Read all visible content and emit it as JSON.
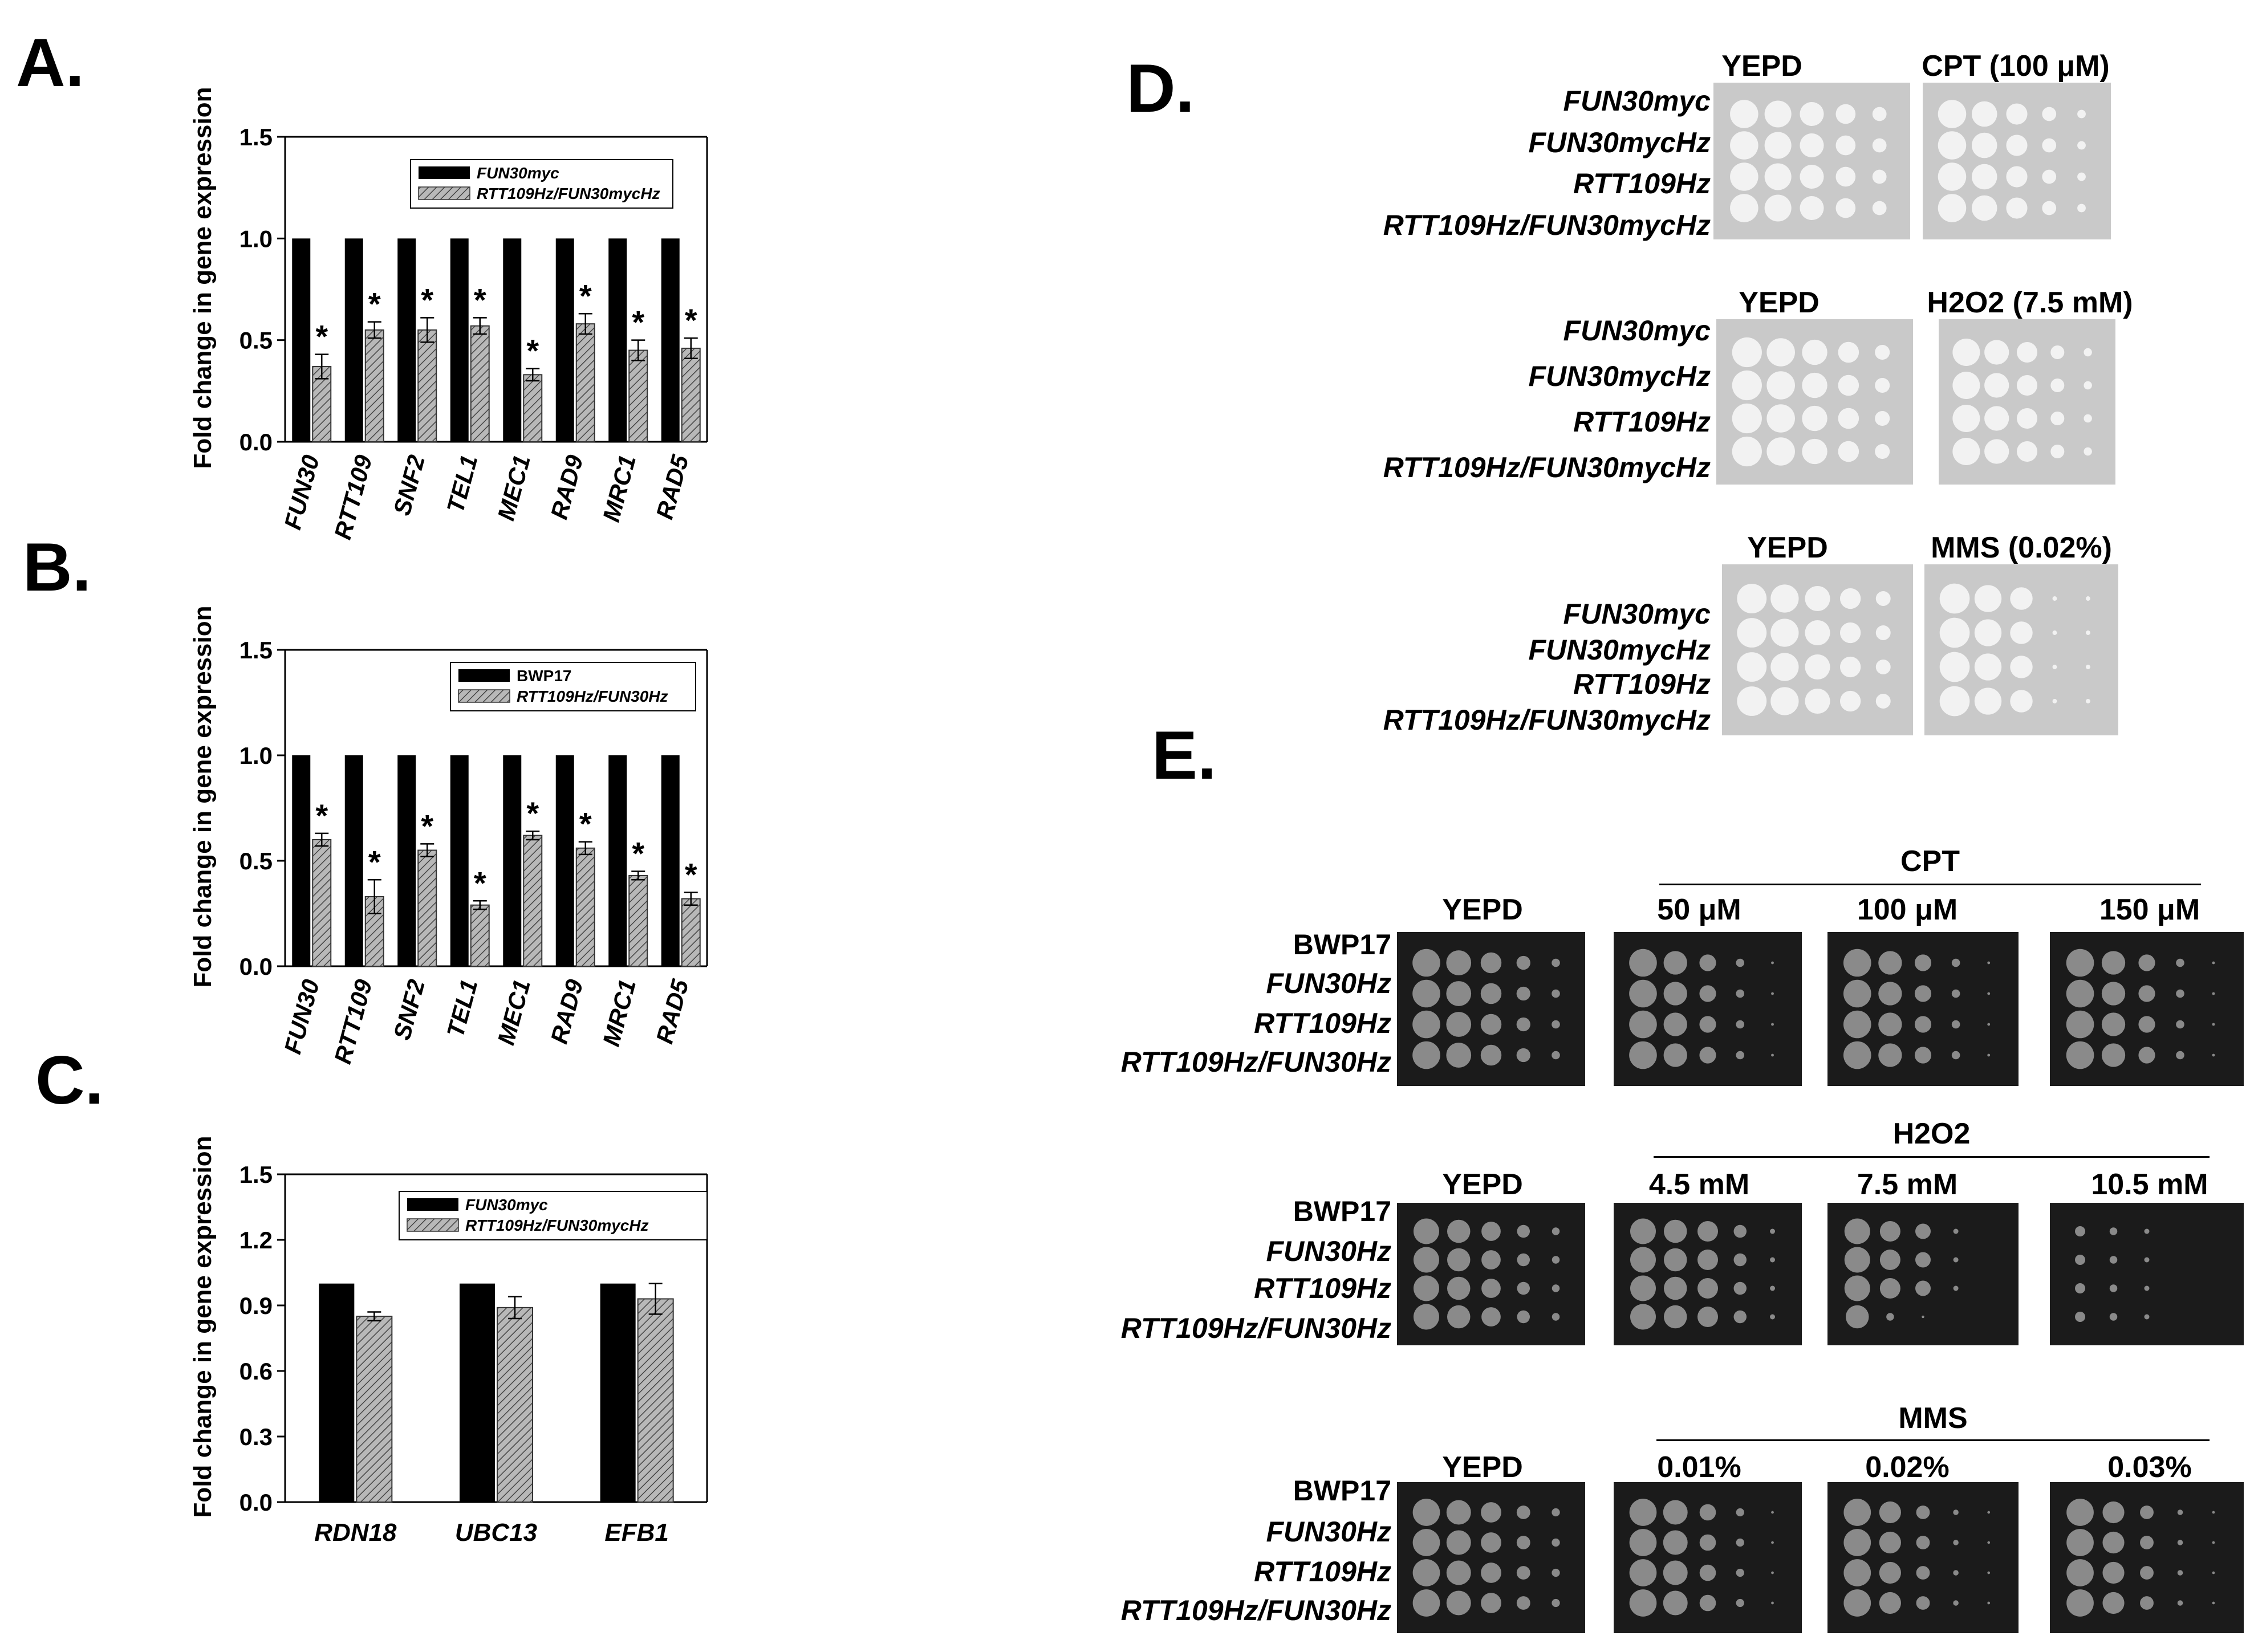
{
  "panels": {
    "A": {
      "letter": "A.",
      "chart_data": {
        "type": "bar",
        "ylabel": "Fold change in gene expression",
        "ylim": [
          0,
          1.5
        ],
        "yticks": [
          "0.0",
          "0.5",
          "1.0",
          "1.5"
        ],
        "categories": [
          "FUN30",
          "RTT109",
          "SNF2",
          "TEL1",
          "MEC1",
          "RAD9",
          "MRC1",
          "RAD5"
        ],
        "legend_placement": "top-right",
        "series": [
          {
            "name": "FUN30myc",
            "color": "#000000",
            "values": [
              1,
              1,
              1,
              1,
              1,
              1,
              1,
              1
            ]
          },
          {
            "name": "RTT109Hz/FUN30mycHz",
            "color": "#9a9a9a",
            "hatched": true,
            "values": [
              0.37,
              0.55,
              0.55,
              0.57,
              0.33,
              0.58,
              0.45,
              0.46
            ],
            "errors": [
              0.06,
              0.04,
              0.06,
              0.04,
              0.03,
              0.05,
              0.05,
              0.05
            ]
          }
        ],
        "annotations": [
          "*",
          "*",
          "*",
          "*",
          "*",
          "*",
          "*",
          "*"
        ]
      }
    },
    "B": {
      "letter": "B.",
      "chart_data": {
        "type": "bar",
        "ylabel": "Fold change in gene expression",
        "ylim": [
          0,
          1.5
        ],
        "yticks": [
          "0.0",
          "0.5",
          "1.0",
          "1.5"
        ],
        "categories": [
          "FUN30",
          "RTT109",
          "SNF2",
          "TEL1",
          "MEC1",
          "RAD9",
          "MRC1",
          "RAD5"
        ],
        "legend_placement": "top-right",
        "series": [
          {
            "name": "BWP17",
            "color": "#000000",
            "upright": true,
            "values": [
              1,
              1,
              1,
              1,
              1,
              1,
              1,
              1
            ]
          },
          {
            "name": "RTT109Hz/FUN30Hz",
            "color": "#9a9a9a",
            "hatched": true,
            "values": [
              0.6,
              0.33,
              0.55,
              0.29,
              0.62,
              0.56,
              0.43,
              0.32
            ],
            "errors": [
              0.03,
              0.08,
              0.03,
              0.02,
              0.02,
              0.03,
              0.02,
              0.03
            ]
          }
        ],
        "annotations": [
          "*",
          "*",
          "*",
          "*",
          "*",
          "*",
          "*",
          "*"
        ]
      }
    },
    "C": {
      "letter": "C.",
      "chart_data": {
        "type": "bar",
        "ylabel": "Fold change in gene expression",
        "ylim": [
          0,
          1.5
        ],
        "yticks": [
          "0.0",
          "0.3",
          "0.6",
          "0.9",
          "1.2",
          "1.5"
        ],
        "categories": [
          "RDN18",
          "UBC13",
          "EFB1"
        ],
        "legend_placement": "top-right",
        "series": [
          {
            "name": "FUN30myc",
            "color": "#000000",
            "values": [
              1,
              1,
              1
            ]
          },
          {
            "name": "RTT109Hz/FUN30mycHz",
            "color": "#9a9a9a",
            "hatched": true,
            "values": [
              0.85,
              0.89,
              0.93
            ],
            "errors": [
              0.02,
              0.05,
              0.07
            ]
          }
        ],
        "annotations": []
      }
    },
    "D": {
      "letter": "D.",
      "blocks": [
        {
          "conditions": [
            "YEPD",
            "CPT (100 μM)"
          ],
          "strains": [
            "FUN30myc",
            "FUN30mycHz",
            "RTT109Hz",
            "RTT109Hz/FUN30mycHz"
          ]
        },
        {
          "conditions": [
            "YEPD",
            "H2O2 (7.5 mM)"
          ],
          "strains": [
            "FUN30myc",
            "FUN30mycHz",
            "RTT109Hz",
            "RTT109Hz/FUN30mycHz"
          ]
        },
        {
          "conditions": [
            "YEPD",
            "MMS (0.02%)"
          ],
          "strains": [
            "FUN30myc",
            "FUN30mycHz",
            "RTT109Hz",
            "RTT109Hz/FUN30mycHz"
          ]
        }
      ]
    },
    "E": {
      "letter": "E.",
      "blocks": [
        {
          "header": "CPT",
          "conditions": [
            "YEPD",
            "50 μM",
            "100 μM",
            "150 μM"
          ],
          "strains": [
            "BWP17",
            "FUN30Hz",
            "RTT109Hz",
            "RTT109Hz/FUN30Hz"
          ]
        },
        {
          "header": "H2O2",
          "conditions": [
            "YEPD",
            "4.5 mM",
            "7.5 mM",
            "10.5 mM"
          ],
          "strains": [
            "BWP17",
            "FUN30Hz",
            "RTT109Hz",
            "RTT109Hz/FUN30Hz"
          ]
        },
        {
          "header": "MMS",
          "conditions": [
            "YEPD",
            "0.01%",
            "0.02%",
            "0.03%"
          ],
          "strains": [
            "BWP17",
            "FUN30Hz",
            "RTT109Hz",
            "RTT109Hz/FUN30Hz"
          ]
        }
      ]
    }
  }
}
